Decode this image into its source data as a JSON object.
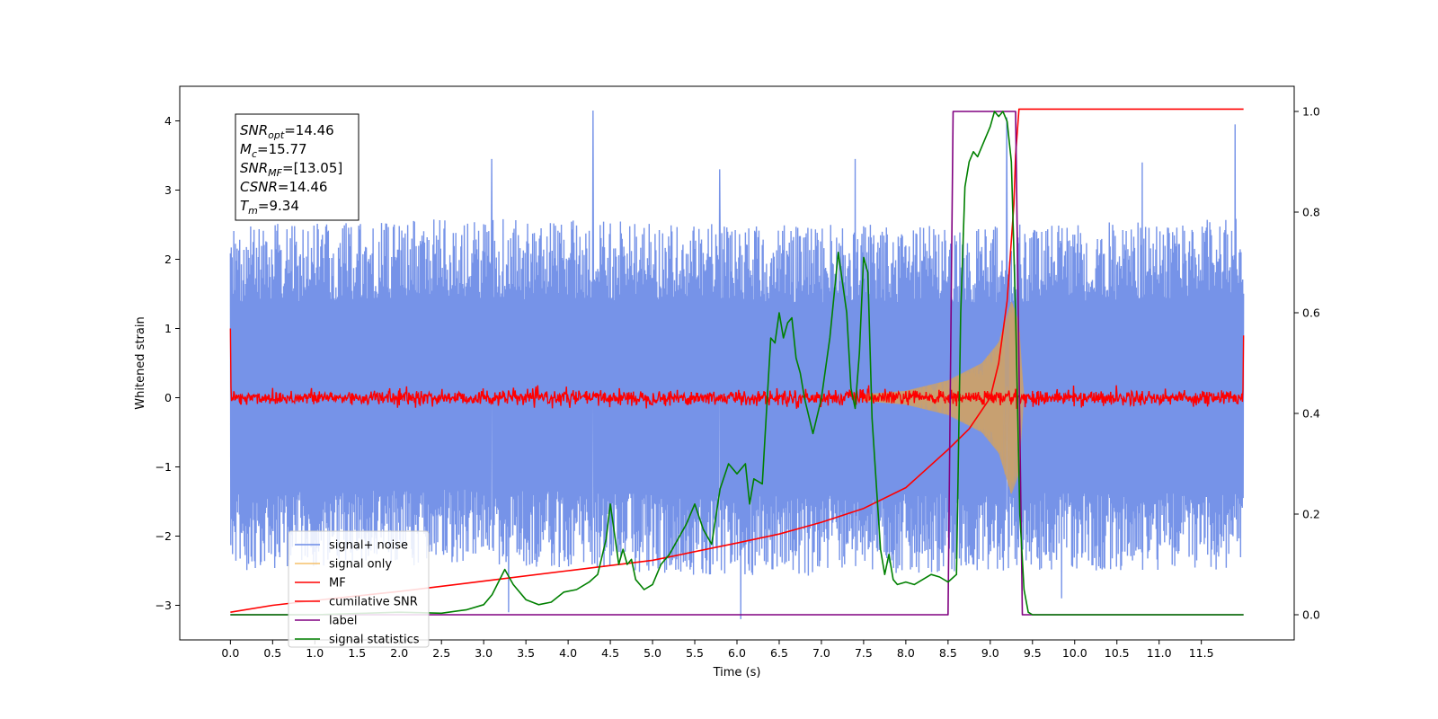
{
  "chart_data": {
    "type": "line",
    "xlabel": "Time (s)",
    "ylabel": "Whitened strain",
    "xlim": [
      -0.6,
      12.6
    ],
    "ylim": [
      -3.5,
      4.5
    ],
    "ylim_right": [
      -0.05,
      1.05
    ],
    "x_ticks": [
      0.0,
      0.5,
      1.0,
      1.5,
      2.0,
      2.5,
      3.0,
      3.5,
      4.0,
      4.5,
      5.0,
      5.5,
      6.0,
      6.5,
      7.0,
      7.5,
      8.0,
      8.5,
      9.0,
      9.5,
      10.0,
      10.5,
      11.0,
      11.5
    ],
    "x_tick_labels": [
      "0.0",
      "0.5",
      "1.0",
      "1.5",
      "2.0",
      "2.5",
      "3.0",
      "3.5",
      "4.0",
      "4.5",
      "5.0",
      "5.5",
      "6.0",
      "6.5",
      "7.0",
      "7.5",
      "8.0",
      "8.5",
      "9.0",
      "9.5",
      "10.0",
      "10.5",
      "11.0",
      "11.5"
    ],
    "y_ticks": [
      -3,
      -2,
      -1,
      0,
      1,
      2,
      3,
      4
    ],
    "y_tick_labels": [
      "−3",
      "−2",
      "−1",
      "0",
      "1",
      "2",
      "3",
      "4"
    ],
    "y_ticks_right": [
      0.0,
      0.2,
      0.4,
      0.6,
      0.8,
      1.0
    ],
    "y_tick_labels_right": [
      "0.0",
      "0.2",
      "0.4",
      "0.6",
      "0.8",
      "1.0"
    ],
    "grid": false,
    "legend_position": "bottom-left",
    "annotation": [
      {
        "base": "SNR",
        "sub": "opt",
        "value": "=14.46"
      },
      {
        "base": "M",
        "sub": "c",
        "value": "=15.77"
      },
      {
        "base": "SNR",
        "sub": "MF",
        "value": "=[13.05]"
      },
      {
        "base": "CSNR",
        "sub": "",
        "value": "=14.46"
      },
      {
        "base": "T",
        "sub": "m",
        "value": "=9.34"
      }
    ],
    "noise_params": {
      "t_start": 0.0,
      "t_end": 12.0,
      "envelope_min": [
        [
          0.0,
          -2.5
        ],
        [
          3.0,
          -2.4
        ],
        [
          6.0,
          -2.6
        ],
        [
          9.0,
          -2.5
        ],
        [
          12.0,
          -2.5
        ]
      ],
      "envelope_max": [
        [
          0.0,
          2.5
        ],
        [
          3.0,
          2.6
        ],
        [
          6.0,
          2.5
        ],
        [
          9.0,
          2.5
        ],
        [
          12.0,
          2.6
        ]
      ],
      "spikes": [
        [
          4.3,
          4.15
        ],
        [
          9.2,
          4.05
        ],
        [
          11.9,
          3.95
        ],
        [
          3.1,
          3.45
        ],
        [
          7.4,
          3.45
        ],
        [
          5.8,
          3.3
        ],
        [
          10.8,
          3.4
        ],
        [
          6.05,
          -3.2
        ],
        [
          3.3,
          -3.1
        ],
        [
          9.85,
          -2.9
        ]
      ]
    },
    "series": [
      {
        "name": "signal+ noise",
        "axis": "left",
        "color": "#6a8ae6",
        "summary": "dense noise band between about -2.5 and 2.6 over 0 to 12 s"
      },
      {
        "name": "signal only",
        "axis": "left",
        "color": "#f5c06a",
        "chirp": {
          "t_start": 7.5,
          "t_merge": 9.34,
          "envelope": [
            [
              7.5,
              0.05
            ],
            [
              8.0,
              0.1
            ],
            [
              8.5,
              0.25
            ],
            [
              8.9,
              0.5
            ],
            [
              9.1,
              0.8
            ],
            [
              9.25,
              1.4
            ],
            [
              9.34,
              1.1
            ],
            [
              9.4,
              0.0
            ]
          ]
        }
      },
      {
        "name": "MF",
        "axis": "left",
        "color": "#ff0000",
        "summary": "matched-filter output near 0 (±0.15) across 0 to 12 s, with edge values 1.0 at 0 s and 0.9 at 12 s"
      },
      {
        "name": "cumilative SNR",
        "axis": "left",
        "color": "#ff0000",
        "x": [
          0.0,
          0.5,
          1.0,
          2.0,
          3.0,
          4.0,
          5.0,
          6.0,
          6.5,
          7.0,
          7.5,
          8.0,
          8.5,
          8.75,
          9.0,
          9.1,
          9.2,
          9.28,
          9.3,
          9.34,
          12.0
        ],
        "y": [
          -3.1,
          -3.0,
          -2.93,
          -2.8,
          -2.65,
          -2.5,
          -2.35,
          -2.1,
          -1.97,
          -1.8,
          -1.6,
          -1.3,
          -0.75,
          -0.45,
          0.0,
          0.5,
          1.4,
          2.8,
          3.5,
          4.17,
          4.17
        ]
      },
      {
        "name": "label",
        "axis": "right",
        "color": "#800080",
        "x": [
          0.0,
          8.5,
          8.56,
          9.3,
          9.38,
          12.0
        ],
        "y": [
          0.0,
          0.0,
          1.0,
          1.0,
          0.0,
          0.0
        ]
      },
      {
        "name": "signal statistics",
        "axis": "right",
        "color": "#008000",
        "x": [
          0.0,
          1.0,
          2.0,
          2.5,
          2.8,
          3.0,
          3.1,
          3.25,
          3.35,
          3.5,
          3.65,
          3.8,
          3.95,
          4.1,
          4.25,
          4.35,
          4.45,
          4.5,
          4.55,
          4.6,
          4.65,
          4.7,
          4.75,
          4.8,
          4.85,
          4.9,
          5.0,
          5.1,
          5.2,
          5.3,
          5.4,
          5.5,
          5.6,
          5.7,
          5.8,
          5.9,
          6.0,
          6.1,
          6.15,
          6.2,
          6.3,
          6.4,
          6.45,
          6.5,
          6.55,
          6.6,
          6.65,
          6.7,
          6.75,
          6.8,
          6.9,
          7.0,
          7.1,
          7.2,
          7.3,
          7.35,
          7.4,
          7.45,
          7.5,
          7.55,
          7.6,
          7.7,
          7.75,
          7.8,
          7.85,
          7.9,
          8.0,
          8.1,
          8.2,
          8.3,
          8.4,
          8.5,
          8.6,
          8.65,
          8.7,
          8.75,
          8.8,
          8.85,
          8.9,
          9.0,
          9.05,
          9.1,
          9.15,
          9.2,
          9.25,
          9.3,
          9.35,
          9.4,
          9.45,
          9.5,
          12.0
        ],
        "y": [
          0.0,
          0.0,
          0.005,
          0.003,
          0.01,
          0.02,
          0.04,
          0.09,
          0.06,
          0.03,
          0.02,
          0.025,
          0.045,
          0.05,
          0.065,
          0.08,
          0.15,
          0.22,
          0.16,
          0.1,
          0.13,
          0.1,
          0.11,
          0.07,
          0.06,
          0.05,
          0.06,
          0.1,
          0.12,
          0.15,
          0.18,
          0.22,
          0.17,
          0.14,
          0.25,
          0.3,
          0.28,
          0.3,
          0.22,
          0.27,
          0.26,
          0.55,
          0.54,
          0.6,
          0.55,
          0.58,
          0.59,
          0.51,
          0.48,
          0.43,
          0.36,
          0.43,
          0.55,
          0.72,
          0.6,
          0.45,
          0.41,
          0.52,
          0.71,
          0.68,
          0.39,
          0.13,
          0.08,
          0.12,
          0.07,
          0.06,
          0.065,
          0.06,
          0.07,
          0.08,
          0.075,
          0.065,
          0.08,
          0.6,
          0.85,
          0.9,
          0.92,
          0.91,
          0.93,
          0.97,
          1.0,
          0.99,
          1.0,
          0.98,
          0.9,
          0.6,
          0.2,
          0.05,
          0.005,
          0.0,
          0.0
        ]
      }
    ]
  }
}
